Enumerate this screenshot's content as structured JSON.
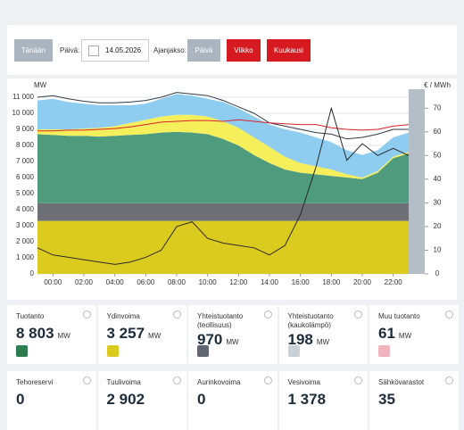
{
  "controls": {
    "today": "Tänään",
    "date_label": "Päivä:",
    "date": "14.05.2026",
    "period_label": "Ajanjakso:",
    "periods": [
      "Päivä",
      "Viikko",
      "Kuukausi"
    ]
  },
  "chart_data": {
    "type": "area",
    "y_label": "MW",
    "y2_label": "€ / MWh",
    "x": [
      -1,
      0,
      1,
      2,
      3,
      4,
      5,
      6,
      7,
      8,
      9,
      10,
      11,
      12,
      13,
      14,
      15,
      16,
      17,
      18,
      19,
      20,
      21,
      22,
      23
    ],
    "xlim": [
      -1,
      23
    ],
    "xticks": [
      {
        "value": 0,
        "label": "00:00"
      },
      {
        "value": 2,
        "label": "02:00"
      },
      {
        "value": 4,
        "label": "04:00"
      },
      {
        "value": 6,
        "label": "06:00"
      },
      {
        "value": 8,
        "label": "08:00"
      },
      {
        "value": 10,
        "label": "10:00"
      },
      {
        "value": 12,
        "label": "12:00"
      },
      {
        "value": 14,
        "label": "14:00"
      },
      {
        "value": 16,
        "label": "16:00"
      },
      {
        "value": 18,
        "label": "18:00"
      },
      {
        "value": 20,
        "label": "20:00"
      },
      {
        "value": 22,
        "label": "22:00"
      }
    ],
    "ylim": [
      0,
      11500
    ],
    "yticks": [
      0,
      {
        "value": 1000,
        "label": "1 000"
      },
      {
        "value": 2000,
        "label": "2 000"
      },
      {
        "value": 3000,
        "label": "3 000"
      },
      {
        "value": 4000,
        "label": "4 000"
      },
      {
        "value": 5000,
        "label": "5 000"
      },
      {
        "value": 6000,
        "label": "6 000"
      },
      {
        "value": 7000,
        "label": "7 000"
      },
      {
        "value": 8000,
        "label": "8 000"
      },
      {
        "value": 9000,
        "label": "9 000"
      },
      {
        "value": 10000,
        "label": "10 000"
      },
      {
        "value": 11000,
        "label": "11 000"
      }
    ],
    "y2lim": [
      0,
      78
    ],
    "y2ticks": [
      0,
      10,
      20,
      30,
      40,
      50,
      60,
      70
    ],
    "grid": true,
    "series": [
      {
        "type": "area",
        "color": "#dccb1f",
        "values": [
          3300,
          3300,
          3300,
          3300,
          3300,
          3300,
          3300,
          3300,
          3300,
          3300,
          3300,
          3300,
          3300,
          3300,
          3300,
          3300,
          3300,
          3300,
          3300,
          3300,
          3300,
          3300,
          3300,
          3300,
          3300
        ]
      },
      {
        "type": "area",
        "color": "#6d7177",
        "values": [
          1100,
          1100,
          1100,
          1100,
          1100,
          1100,
          1100,
          1100,
          1100,
          1100,
          1100,
          1100,
          1100,
          1100,
          1100,
          1100,
          1100,
          1100,
          1100,
          1100,
          1100,
          1100,
          1100,
          1100,
          1100
        ]
      },
      {
        "type": "area",
        "color": "#4e9b7e",
        "values": [
          4300,
          4250,
          4200,
          4200,
          4150,
          4200,
          4250,
          4300,
          4400,
          4450,
          4400,
          4300,
          4000,
          3600,
          3000,
          2500,
          2100,
          1900,
          1800,
          1700,
          1600,
          1500,
          1900,
          2800,
          3100
        ]
      },
      {
        "type": "area",
        "color": "#f6ef5c",
        "values": [
          300,
          350,
          400,
          450,
          550,
          600,
          750,
          900,
          1000,
          1050,
          1100,
          1100,
          1100,
          1100,
          1100,
          1000,
          800,
          600,
          500,
          400,
          200,
          100,
          100,
          100,
          100
        ]
      },
      {
        "type": "area",
        "color": "#8ecdf0",
        "values": [
          1800,
          1900,
          1700,
          1550,
          1400,
          1300,
          1100,
          1000,
          1100,
          1300,
          1200,
          1100,
          1200,
          1200,
          1300,
          1400,
          1700,
          1900,
          1800,
          1700,
          1500,
          1400,
          1300,
          1200,
          1200
        ]
      },
      {
        "type": "line",
        "color": "#2f3b45",
        "values": [
          11000,
          11100,
          10900,
          10750,
          10650,
          10650,
          10700,
          10800,
          11000,
          11300,
          11200,
          11100,
          10800,
          10400,
          10000,
          9400,
          9200,
          9000,
          8800,
          8700,
          8400,
          8500,
          8700,
          9000,
          9000
        ]
      },
      {
        "type": "line",
        "color": "#d8232a",
        "values": [
          8900,
          8900,
          8950,
          8950,
          9000,
          9050,
          9150,
          9300,
          9450,
          9500,
          9550,
          9550,
          9500,
          9600,
          9500,
          9400,
          9350,
          9300,
          9300,
          9100,
          9000,
          8950,
          9000,
          9200,
          9300
        ]
      },
      {
        "type": "line",
        "axis": "y2",
        "color": "#2a2a2a",
        "values": [
          11,
          8,
          7,
          6,
          5,
          4,
          5,
          7,
          10,
          20,
          22,
          15,
          13,
          12,
          11,
          8,
          12,
          25,
          45,
          70,
          48,
          55,
          50,
          53,
          50
        ]
      }
    ]
  },
  "cards": [
    {
      "label": "Tuotanto",
      "value": "8 803",
      "unit": "MW",
      "icon": "#2e7d4f"
    },
    {
      "label": "Ydinvoima",
      "value": "3 257",
      "unit": "MW",
      "icon": "#dccb1f"
    },
    {
      "label": "Yhteistuotanto (teollisuus)",
      "value": "970",
      "unit": "MW",
      "icon": "#5f6770"
    },
    {
      "label": "Yhteistuotanto (kaukolämpö)",
      "value": "198",
      "unit": "MW",
      "icon": "#c9d0d6"
    },
    {
      "label": "Muu tuotanto",
      "value": "61",
      "unit": "MW",
      "icon": "#f0b4bf"
    },
    {
      "label": "Tehoreservi",
      "value": "0"
    },
    {
      "label": "Tuulivoima",
      "value": "2 902"
    },
    {
      "label": "Aurinkovoima",
      "value": "0"
    },
    {
      "label": "Vesivoima",
      "value": "1 378"
    },
    {
      "label": "Sähkövarastot",
      "value": "35"
    }
  ]
}
